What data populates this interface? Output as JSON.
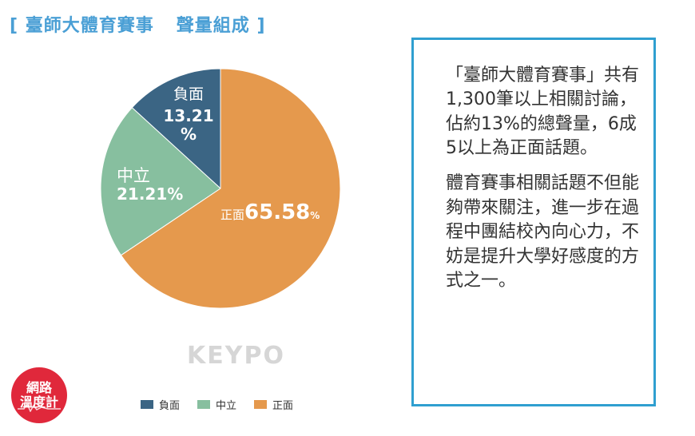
{
  "title": {
    "bracket_open": "[",
    "main": "臺師大體育賽事",
    "sub": "聲量組成",
    "bracket_close": "]"
  },
  "chart_data": {
    "type": "pie",
    "title": "臺師大體育賽事 聲量組成",
    "slices": [
      {
        "label": "負面",
        "value": 13.21,
        "value_text": "13.21",
        "unit": "%",
        "color": "#3b6584"
      },
      {
        "label": "中立",
        "value": 21.21,
        "value_text": "21.21%",
        "unit": "",
        "color": "#87bf9f"
      },
      {
        "label": "正面",
        "value": 65.58,
        "value_text": "65.58",
        "unit": "%",
        "color": "#e5994d"
      }
    ],
    "legend": [
      "負面",
      "中立",
      "正面"
    ],
    "legend_position": "bottom",
    "start": "12 o'clock, counterclockwise for 負面 then 中立"
  },
  "watermark": "KEYPO",
  "logo": {
    "line1": "網路",
    "line2": "溫度計"
  },
  "textbox": {
    "para1": "「臺師大體育賽事」共有1,300筆以上相關討論，佔約13%的總聲量，6成5以上為正面話題。",
    "para2": "體育賽事相關話題不但能夠帶來關注，進一步在過程中團結校內向心力，不妨是提升大學好感度的方式之一。"
  }
}
